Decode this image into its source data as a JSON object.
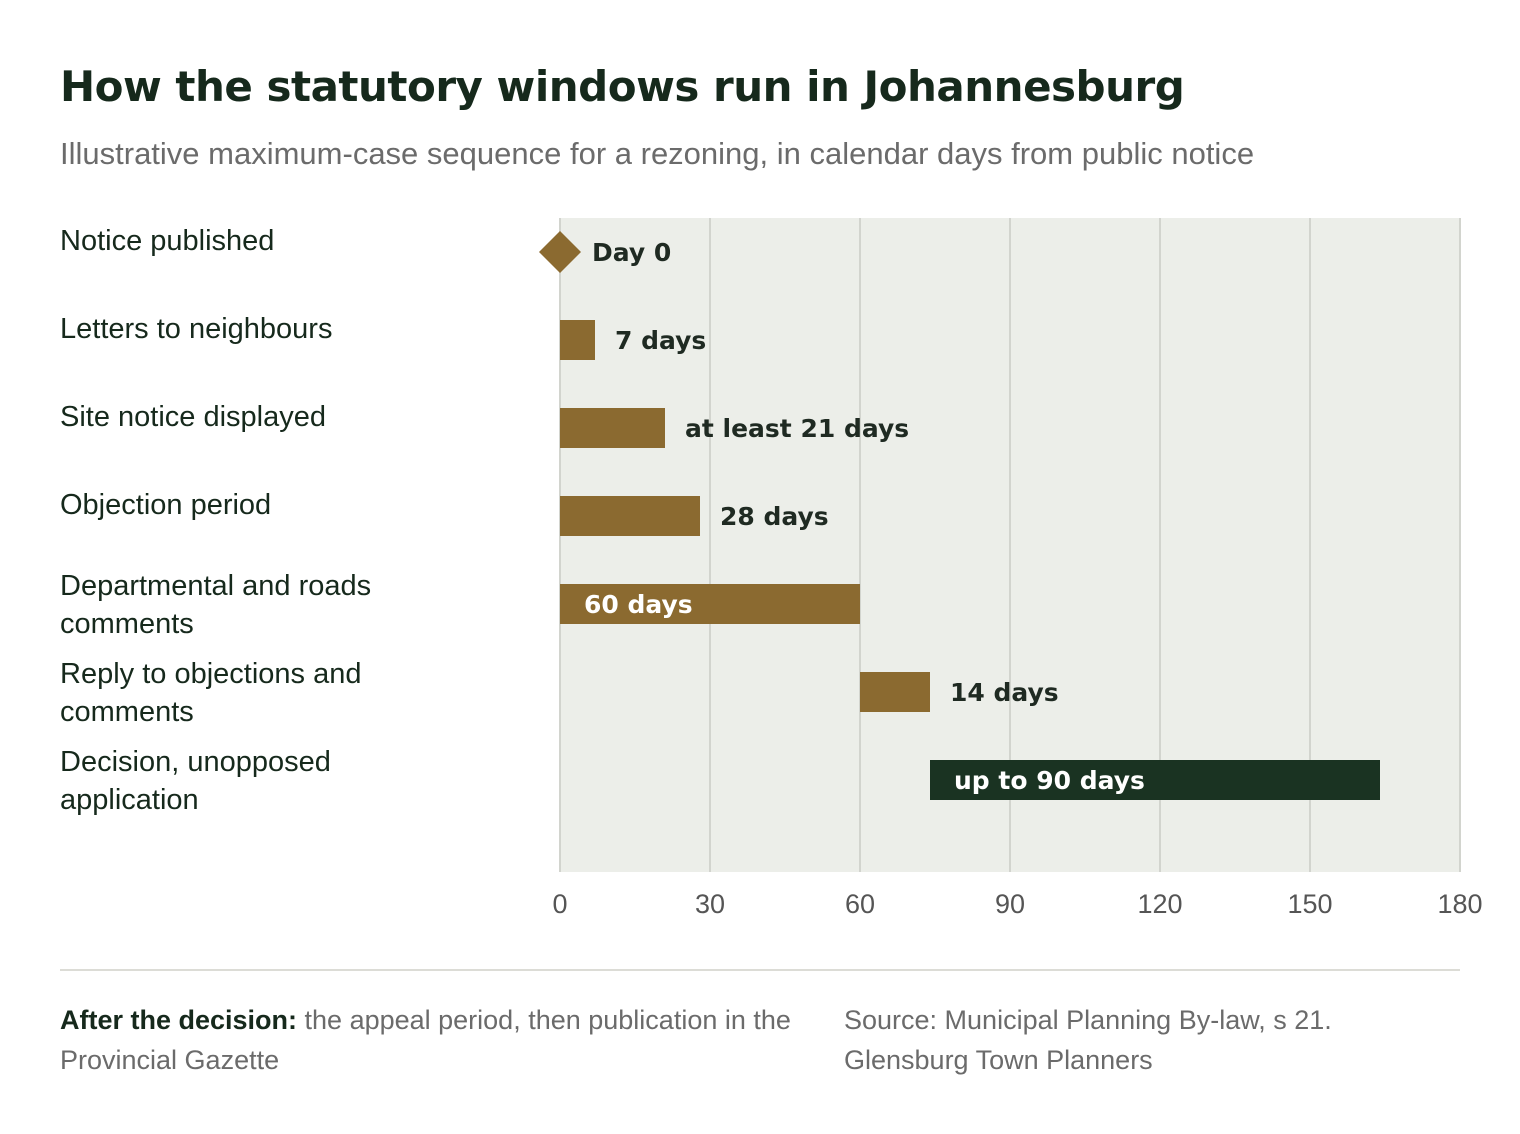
{
  "header": {
    "title": "How the statutory windows run in Johannesburg",
    "subtitle": "Illustrative maximum-case sequence for a rezoning, in calendar days from public notice"
  },
  "chart_data": {
    "type": "bar",
    "subtype": "gantt",
    "xlim": [
      0,
      180
    ],
    "xticks": [
      0,
      30,
      60,
      90,
      120,
      150,
      180
    ],
    "grid": "vertical",
    "legend": "none",
    "colors": {
      "bar": "#8b6a30",
      "highlight": "#1a3322",
      "plot_bg": "#eceee9",
      "grid": "#d2d4ce"
    },
    "rows": [
      {
        "label": "Notice published",
        "start": 0,
        "end": 0,
        "marker": "diamond",
        "value_label": "Day 0",
        "label_inside": false,
        "highlight": false
      },
      {
        "label": "Letters to neighbours",
        "start": 0,
        "end": 7,
        "value_label": "7 days",
        "label_inside": false,
        "highlight": false
      },
      {
        "label": "Site notice displayed",
        "start": 0,
        "end": 21,
        "value_label": "at least 21 days",
        "label_inside": false,
        "highlight": false
      },
      {
        "label": "Objection period",
        "start": 0,
        "end": 28,
        "value_label": "28 days",
        "label_inside": false,
        "highlight": false
      },
      {
        "label": "Departmental and roads comments",
        "start": 0,
        "end": 60,
        "value_label": "60 days",
        "label_inside": true,
        "highlight": false
      },
      {
        "label": "Reply to objections and comments",
        "start": 60,
        "end": 74,
        "value_label": "14 days",
        "label_inside": false,
        "highlight": false
      },
      {
        "label": "Decision, unopposed application",
        "start": 74,
        "end": 164,
        "value_label": "up to 90 days",
        "label_inside": true,
        "highlight": true
      }
    ]
  },
  "footer": {
    "note_lead": "After the decision:",
    "note_text": " the appeal period, then publication in the Provincial Gazette",
    "source_line1": "Source: Municipal Planning By-law, s 21.",
    "source_line2": "Glensburg Town Planners"
  }
}
